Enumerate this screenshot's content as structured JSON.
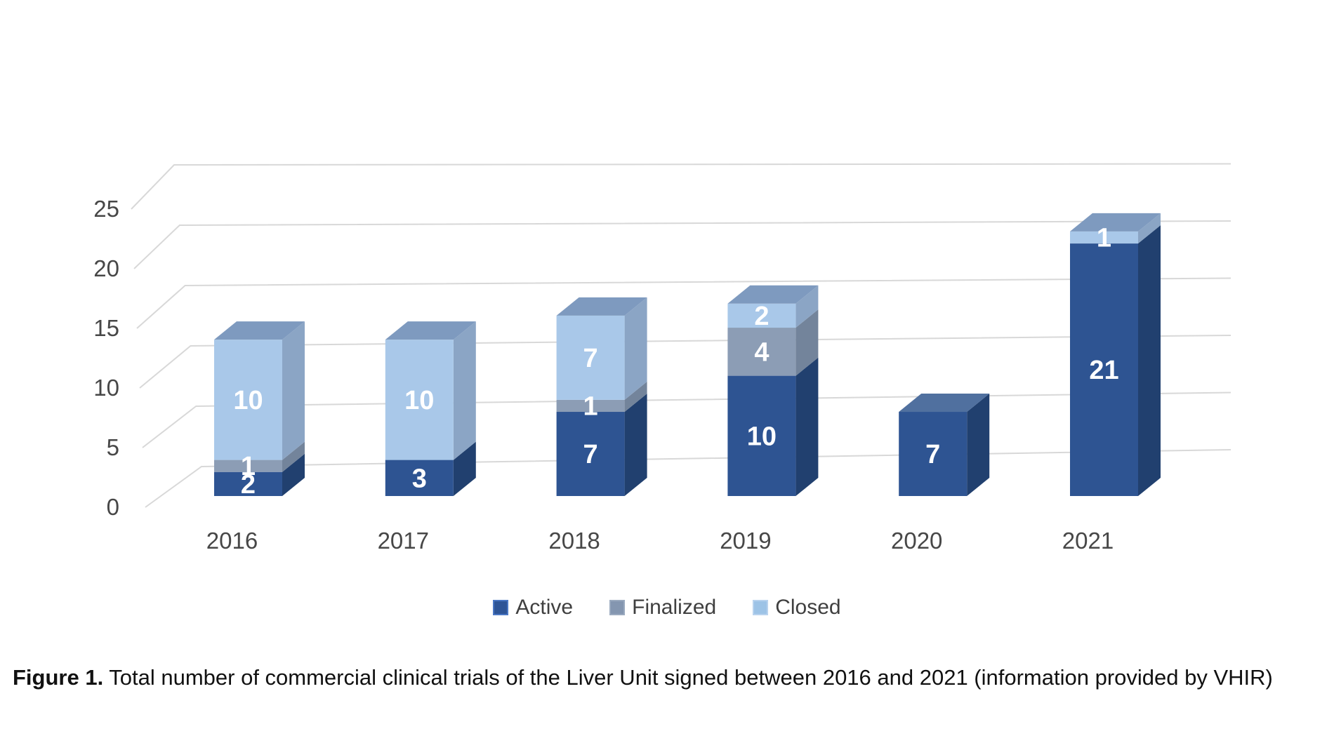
{
  "figure": {
    "caption_label": "Figure 1.",
    "caption_text": " Total number of commercial clinical trials of the Liver Unit signed between 2016 and 2021 (information provided by VHIR)"
  },
  "chart_data": {
    "type": "bar",
    "subtype": "3d-stacked-column",
    "title": "",
    "xlabel": "",
    "ylabel": "",
    "categories": [
      "2016",
      "2017",
      "2018",
      "2019",
      "2020",
      "2021"
    ],
    "series": [
      {
        "name": "Active",
        "values": [
          2,
          3,
          7,
          10,
          7,
          21
        ],
        "color": "#2e5492",
        "side_color": "#21406f",
        "top_color": "#50709f",
        "swatch_color": "#2e5597",
        "swatch_border": "#4a77c4"
      },
      {
        "name": "Finalized",
        "values": [
          1,
          0,
          1,
          4,
          0,
          0
        ],
        "color": "#8c9db5",
        "side_color": "#73849b",
        "top_color": "#8a9cb5",
        "swatch_color": "#8496b0",
        "swatch_border": "#9aaabf"
      },
      {
        "name": "Closed",
        "values": [
          10,
          10,
          7,
          2,
          0,
          1
        ],
        "color": "#a9c8e9",
        "side_color": "#8ba5c5",
        "top_color": "#7e9abf",
        "swatch_color": "#9dc3e6",
        "swatch_border": "#b8d2ee"
      }
    ],
    "totals": [
      13,
      13,
      15,
      16,
      7,
      22
    ],
    "y_ticks": [
      0,
      5,
      10,
      15,
      20,
      25
    ],
    "ylim": [
      0,
      25
    ],
    "grid": true,
    "legend_position": "bottom",
    "data_labels": "white bold numbers centered in each non-zero segment"
  },
  "colors": {
    "gridline": "#d8d8d8",
    "axis_text": "#474747",
    "bar_label_text": "#ffffff",
    "background": "#ffffff"
  }
}
